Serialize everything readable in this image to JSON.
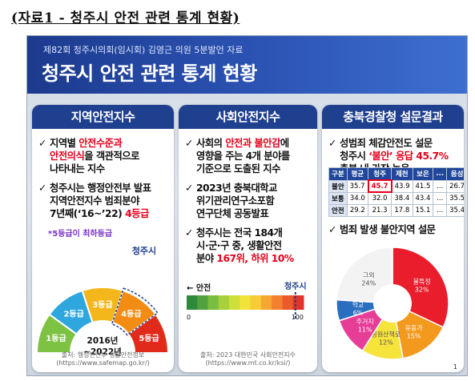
{
  "doc_title": "(자료1 - 청주시 안전 관련 통계 현황)",
  "slide": {
    "subtitle": "제82회 청주시의회(임시회) 김영근 의원 5분발언 자료",
    "title": "청주시 안전 관련 통계 현황",
    "page_number": "1"
  },
  "panel1": {
    "title": "지역안전지수",
    "b1": {
      "l1a": "지역별 ",
      "l1b": "안전수준과",
      "l2a": "안전의식",
      "l2b": "을 객관적으로",
      "l3": "나타내는 지수"
    },
    "b2": {
      "l1": "청주시는 행정안전부 발표",
      "l2": "지역안전지수 범죄분야",
      "l3a": "7년째(‘16~’22) ",
      "l3b": "4등급"
    },
    "note": "*5등급이 최하등급",
    "gauge": {
      "grades": [
        "1등급",
        "2등급",
        "3등급",
        "4등급",
        "5등급"
      ],
      "colors": [
        "#7ec243",
        "#2ea6de",
        "#f3b71b",
        "#f28c12",
        "#e12a1a"
      ],
      "marker_label": "청주시",
      "period_l1": "2016년",
      "period_l2": "~2022년"
    },
    "source_l1": "출처: 행정안전부 생활안전정보",
    "source_l2": "(https://www.safemap.go.kr/)"
  },
  "panel2": {
    "title": "사회안전지수",
    "b1": {
      "l1a": "사회의 ",
      "l1b": "안전과 불안감",
      "l1c": "에",
      "l2": "영향을 주는 4개 분야를",
      "l3": "기준으로 도출된 지수"
    },
    "b2": {
      "l1": "2023년 충북대학교",
      "l2": "위기관리연구소포함",
      "l3": "연구단체 공동발표"
    },
    "b3": {
      "l1": "청주시는 전국 184개",
      "l2": "시·군·구 중, 생활안전",
      "l3a": "분야 ",
      "l3b": "167위, 하위 10%"
    },
    "scale": {
      "left_label": "← 안전",
      "marker_label": "청주시",
      "min": "0",
      "max": "100",
      "colors": [
        "#2d8a3a",
        "#4fa23d",
        "#7bbd3f",
        "#a8d03c",
        "#cfdf3a",
        "#f1e33a",
        "#f7cc35",
        "#f6a732",
        "#f3802f",
        "#ec5a2b",
        "#e2342a"
      ],
      "chungju_value": 93
    },
    "source_l1": "출처: 2023 대한민국 사회안전지수",
    "source_l2": "(https://www.mt.co.kr/ksi/)"
  },
  "panel3": {
    "title": "충북경찰청 설문결과",
    "b1": {
      "l1": "성범죄 체감안전도 설문",
      "l2a": "청주시 ",
      "l2b": "‘불안’ 응답 45.7%",
      "l3": "충북 내 가장 높음"
    },
    "table": {
      "headers": [
        "구분",
        "평균",
        "청주",
        "제천",
        "보은",
        "...",
        "음성"
      ],
      "rows": [
        [
          "불안",
          "35.7",
          "45.7",
          "43.9",
          "41.5",
          "...",
          "26.7"
        ],
        [
          "보통",
          "34.0",
          "32.0",
          "38.4",
          "43.4",
          "...",
          "35.5"
        ],
        [
          "안전",
          "29.2",
          "21.3",
          "17.8",
          "15.1",
          "...",
          "35.4"
        ]
      ]
    },
    "b2": "범죄 발생 불안지역 설문",
    "pie": {
      "slices": [
        {
          "label": "불특정",
          "pct": "32%",
          "value": 32,
          "color": "#ea1d2c"
        },
        {
          "label": "유흥가",
          "pct": "15%",
          "value": 15,
          "color": "#f39a1e"
        },
        {
          "label": "공원산책로",
          "pct": "12%",
          "value": 12,
          "color": "#f6e33c"
        },
        {
          "label": "주거지",
          "pct": "11%",
          "value": 11,
          "color": "#e63d97"
        },
        {
          "label": "학교",
          "pct": "6%",
          "value": 6,
          "color": "#2a6fbf"
        },
        {
          "label": "그외",
          "pct": "24%",
          "value": 24,
          "color": "#f3f3f3"
        }
      ]
    }
  }
}
